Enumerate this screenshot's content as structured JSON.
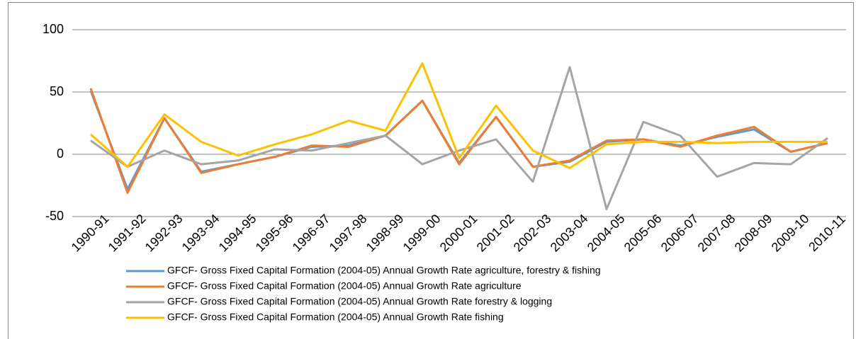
{
  "chart_data": {
    "type": "line",
    "categories": [
      "1990-91",
      "1991-92",
      "1992-93",
      "1993-94",
      "1994-95",
      "1995-96",
      "1996-97",
      "1997-98",
      "1998-99",
      "1999-00",
      "2000-01",
      "2001-02",
      "2002-03",
      "2003-04",
      "2004-05",
      "2005-06",
      "2006-07",
      "2007-08",
      "2008-09",
      "2009-10",
      "2010-11"
    ],
    "series": [
      {
        "name": "GFCF- Gross Fixed Capital Formation (2004-05) Annual Growth Rate agriculture, forestry & fishing",
        "color": "#5b9bd5",
        "values": [
          51,
          -28,
          29,
          -14,
          -8,
          -2,
          6,
          7,
          15,
          43,
          -7,
          30,
          -10,
          -6,
          10,
          12,
          7,
          14,
          20,
          2,
          9
        ]
      },
      {
        "name": "GFCF- Gross Fixed Capital Formation (2004-05) Annual Growth Rate agriculture",
        "color": "#ed7d31",
        "values": [
          53,
          -31,
          29,
          -15,
          -8,
          -2,
          7,
          6,
          15,
          43,
          -8,
          30,
          -10,
          -5,
          11,
          12,
          6,
          15,
          22,
          2,
          9
        ]
      },
      {
        "name": "GFCF- Gross Fixed Capital Formation (2004-05) Annual Growth Rate forestry & logging",
        "color": "#a5a5a5",
        "values": [
          11,
          -10,
          3,
          -8,
          -5,
          4,
          3,
          9,
          15,
          -8,
          3,
          12,
          -22,
          70,
          -44,
          26,
          15,
          -18,
          -7,
          -8,
          13
        ]
      },
      {
        "name": "GFCF- Gross Fixed Capital Formation (2004-05) Annual Growth Rate fishing",
        "color": "#ffc000",
        "values": [
          16,
          -10,
          32,
          10,
          -1,
          8,
          16,
          27,
          19,
          73,
          -3,
          39,
          3,
          -11,
          8,
          10,
          10,
          9,
          10,
          10,
          10
        ]
      }
    ],
    "ylim": [
      -50,
      100
    ],
    "yticks": [
      -50,
      0,
      50,
      100
    ],
    "grid": true
  }
}
